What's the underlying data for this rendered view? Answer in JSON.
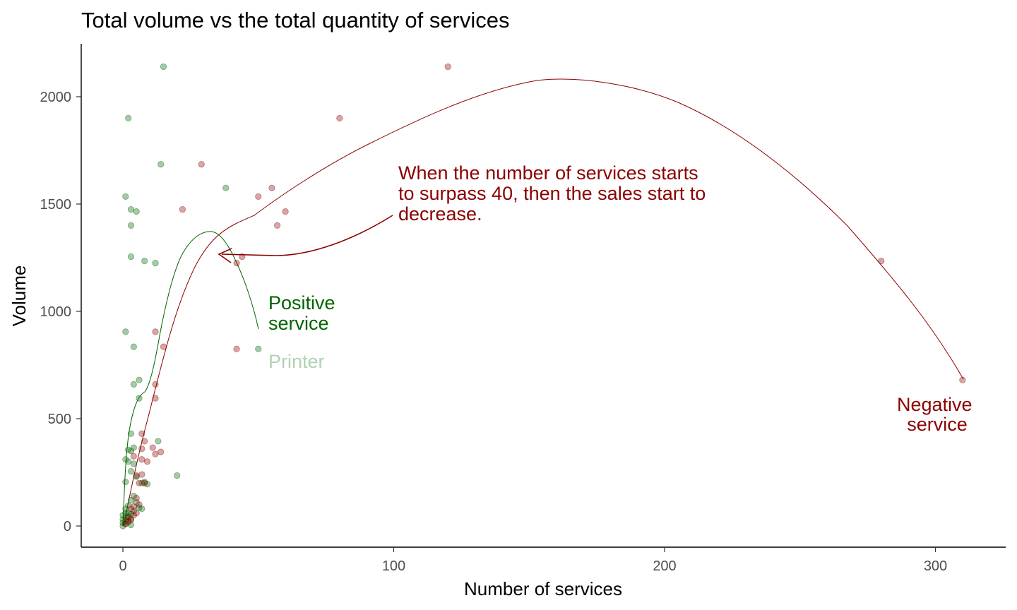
{
  "chart_data": {
    "type": "scatter",
    "title": "Total volume vs the total quantity of services",
    "xlabel": "Number of services",
    "ylabel": "Volume",
    "xlim": [
      -15,
      325
    ],
    "ylim": [
      -100,
      2250
    ],
    "x_ticks": [
      0,
      100,
      200,
      300
    ],
    "y_ticks": [
      0,
      500,
      1000,
      1500,
      2000
    ],
    "grid": false,
    "legend": "none",
    "series": [
      {
        "name": "Positive service",
        "color": "#006400",
        "points": [
          [
            15,
            2140
          ],
          [
            2,
            1900
          ],
          [
            14,
            1685
          ],
          [
            1,
            1535
          ],
          [
            3,
            1475
          ],
          [
            5,
            1465
          ],
          [
            3,
            1400
          ],
          [
            38,
            1575
          ],
          [
            3,
            1255
          ],
          [
            8,
            1235
          ],
          [
            12,
            1225
          ],
          [
            1,
            905
          ],
          [
            4,
            835
          ],
          [
            50,
            825
          ],
          [
            6,
            680
          ],
          [
            4,
            660
          ],
          [
            6,
            595
          ],
          [
            3,
            430
          ],
          [
            13,
            395
          ],
          [
            2,
            355
          ],
          [
            4,
            365
          ],
          [
            3,
            350
          ],
          [
            1,
            310
          ],
          [
            2,
            300
          ],
          [
            4,
            290
          ],
          [
            20,
            235
          ],
          [
            3,
            255
          ],
          [
            1,
            205
          ],
          [
            5,
            230
          ],
          [
            9,
            195
          ],
          [
            7,
            200
          ],
          [
            8,
            205
          ],
          [
            4,
            140
          ],
          [
            5,
            110
          ],
          [
            3,
            120
          ],
          [
            2,
            95
          ],
          [
            6,
            85
          ],
          [
            7,
            80
          ],
          [
            1,
            80
          ],
          [
            2,
            60
          ],
          [
            3,
            55
          ],
          [
            0,
            50
          ],
          [
            1,
            40
          ],
          [
            0,
            30
          ],
          [
            1,
            25
          ],
          [
            2,
            20
          ],
          [
            0,
            15
          ],
          [
            1,
            10
          ],
          [
            3,
            5
          ],
          [
            0,
            0
          ],
          [
            1,
            60
          ],
          [
            2,
            45
          ],
          [
            4,
            70
          ],
          [
            3,
            30
          ]
        ]
      },
      {
        "name": "Negative service",
        "color": "#8b0000",
        "points": [
          [
            120,
            2140
          ],
          [
            80,
            1900
          ],
          [
            29,
            1685
          ],
          [
            50,
            1535
          ],
          [
            55,
            1575
          ],
          [
            60,
            1465
          ],
          [
            22,
            1475
          ],
          [
            57,
            1400
          ],
          [
            44,
            1255
          ],
          [
            42,
            1225
          ],
          [
            280,
            1235
          ],
          [
            310,
            680
          ],
          [
            42,
            825
          ],
          [
            12,
            905
          ],
          [
            15,
            835
          ],
          [
            12,
            660
          ],
          [
            12,
            595
          ],
          [
            7,
            430
          ],
          [
            8,
            395
          ],
          [
            11,
            365
          ],
          [
            12,
            335
          ],
          [
            14,
            345
          ],
          [
            7,
            360
          ],
          [
            4,
            325
          ],
          [
            7,
            310
          ],
          [
            9,
            300
          ],
          [
            5,
            235
          ],
          [
            7,
            240
          ],
          [
            6,
            200
          ],
          [
            8,
            200
          ],
          [
            6,
            100
          ],
          [
            5,
            130
          ],
          [
            4,
            90
          ],
          [
            3,
            80
          ],
          [
            5,
            60
          ],
          [
            2,
            40
          ],
          [
            3,
            30
          ],
          [
            4,
            50
          ],
          [
            2,
            20
          ],
          [
            1,
            10
          ]
        ]
      }
    ],
    "annotations": [
      {
        "text_lines": [
          "When the number of services starts",
          "to surpass 40, then the sales start to",
          "decrease."
        ],
        "color": "#8b0000"
      },
      {
        "text_lines": [
          "Positive",
          "service"
        ],
        "color": "#006400"
      },
      {
        "text_lines": [
          "Printer"
        ],
        "color": "#b3d1b3"
      },
      {
        "text_lines": [
          "Negative",
          "service"
        ],
        "color": "#8b0000"
      }
    ]
  }
}
